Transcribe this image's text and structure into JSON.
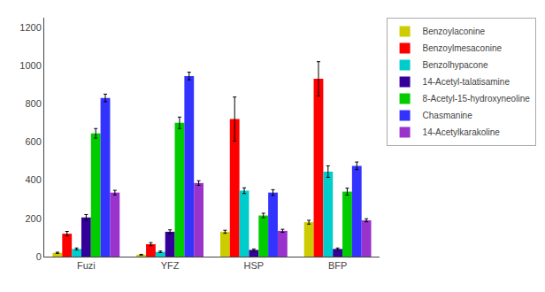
{
  "chart_data": {
    "type": "bar",
    "categories": [
      "Fuzi",
      "YFZ",
      "HSP",
      "BFP"
    ],
    "series": [
      {
        "name": "Benzoylaconine",
        "color": "#cccc00",
        "values": [
          20,
          10,
          130,
          180
        ],
        "errors": [
          3,
          2,
          8,
          10
        ]
      },
      {
        "name": "Benzoylmesaconine",
        "color": "#ff0000",
        "values": [
          120,
          65,
          720,
          930
        ],
        "errors": [
          12,
          8,
          115,
          90
        ]
      },
      {
        "name": "Benzolhypacone",
        "color": "#00cccc",
        "values": [
          40,
          25,
          345,
          445
        ],
        "errors": [
          5,
          4,
          15,
          30
        ]
      },
      {
        "name": "14-Acetyl-talatisamine",
        "color": "#330099",
        "values": [
          205,
          130,
          35,
          40
        ],
        "errors": [
          15,
          10,
          5,
          5
        ]
      },
      {
        "name": "8-Acetyl-15-hydroxyneoline",
        "color": "#00cc00",
        "values": [
          645,
          700,
          215,
          340
        ],
        "errors": [
          25,
          30,
          12,
          18
        ]
      },
      {
        "name": "Chasmanine",
        "color": "#3333ff",
        "values": [
          830,
          945,
          335,
          475
        ],
        "errors": [
          20,
          20,
          15,
          20
        ]
      },
      {
        "name": "14-Acetylkarakoline",
        "color": "#9933cc",
        "values": [
          335,
          385,
          135,
          190
        ],
        "errors": [
          12,
          12,
          8,
          8
        ]
      }
    ],
    "ylim": [
      0,
      1250
    ],
    "yticks": [
      0,
      200,
      400,
      600,
      800,
      1000,
      1200
    ],
    "grid": false,
    "legend": "right"
  }
}
